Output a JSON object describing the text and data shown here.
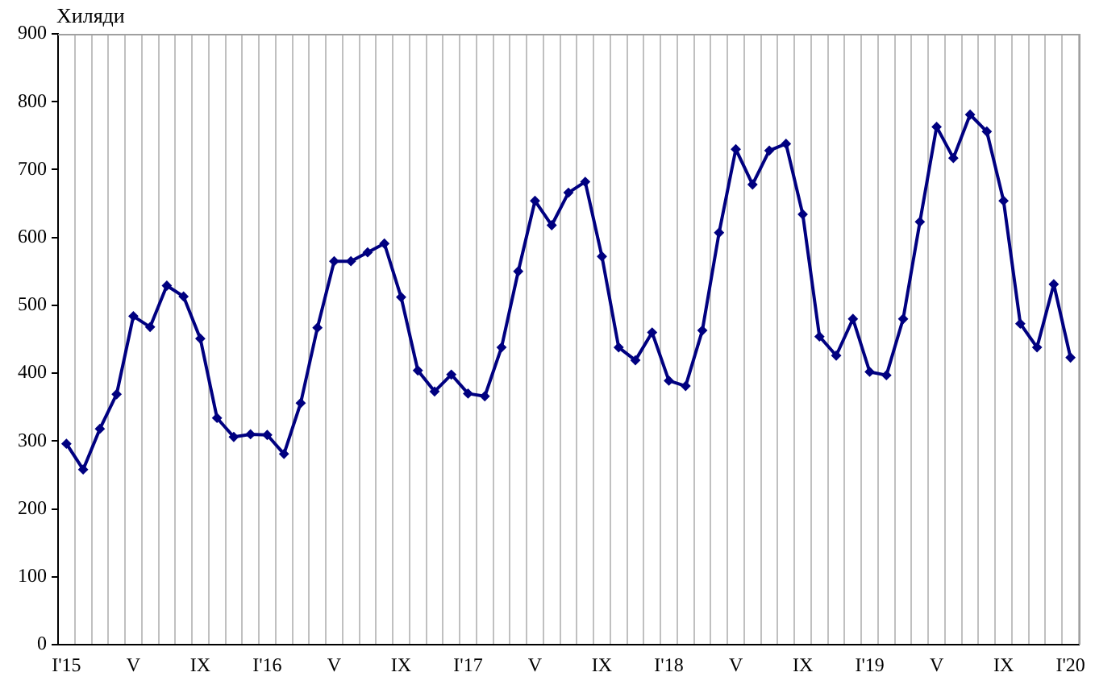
{
  "chart_data": {
    "type": "line",
    "ylabel": "Хиляди",
    "categories": [
      "I'15",
      null,
      null,
      null,
      "V",
      null,
      null,
      null,
      "IX",
      null,
      null,
      null,
      "I'16",
      null,
      null,
      null,
      "V",
      null,
      null,
      null,
      "IX",
      null,
      null,
      null,
      "I'17",
      null,
      null,
      null,
      "V",
      null,
      null,
      null,
      "IX",
      null,
      null,
      null,
      "I'18",
      null,
      null,
      null,
      "V",
      null,
      null,
      null,
      "IX",
      null,
      null,
      null,
      "I'19",
      null,
      null,
      null,
      "V",
      null,
      null,
      null,
      "IX",
      null,
      null,
      null,
      "I'20"
    ],
    "values": [
      296,
      258,
      318,
      369,
      484,
      468,
      529,
      513,
      451,
      334,
      306,
      310,
      309,
      281,
      356,
      467,
      565,
      565,
      578,
      591,
      512,
      404,
      373,
      398,
      370,
      366,
      438,
      550,
      654,
      618,
      666,
      682,
      572,
      438,
      419,
      460,
      389,
      381,
      463,
      607,
      730,
      678,
      728,
      738,
      634,
      454,
      426,
      480,
      402,
      397,
      480,
      623,
      763,
      717,
      781,
      756,
      654,
      473,
      438,
      531,
      423
    ],
    "color": "#000080",
    "ylim": [
      0,
      900
    ],
    "yticks": [
      0,
      100,
      200,
      300,
      400,
      500,
      600,
      700,
      800,
      900
    ],
    "grid": "x",
    "marker": "diamond"
  }
}
